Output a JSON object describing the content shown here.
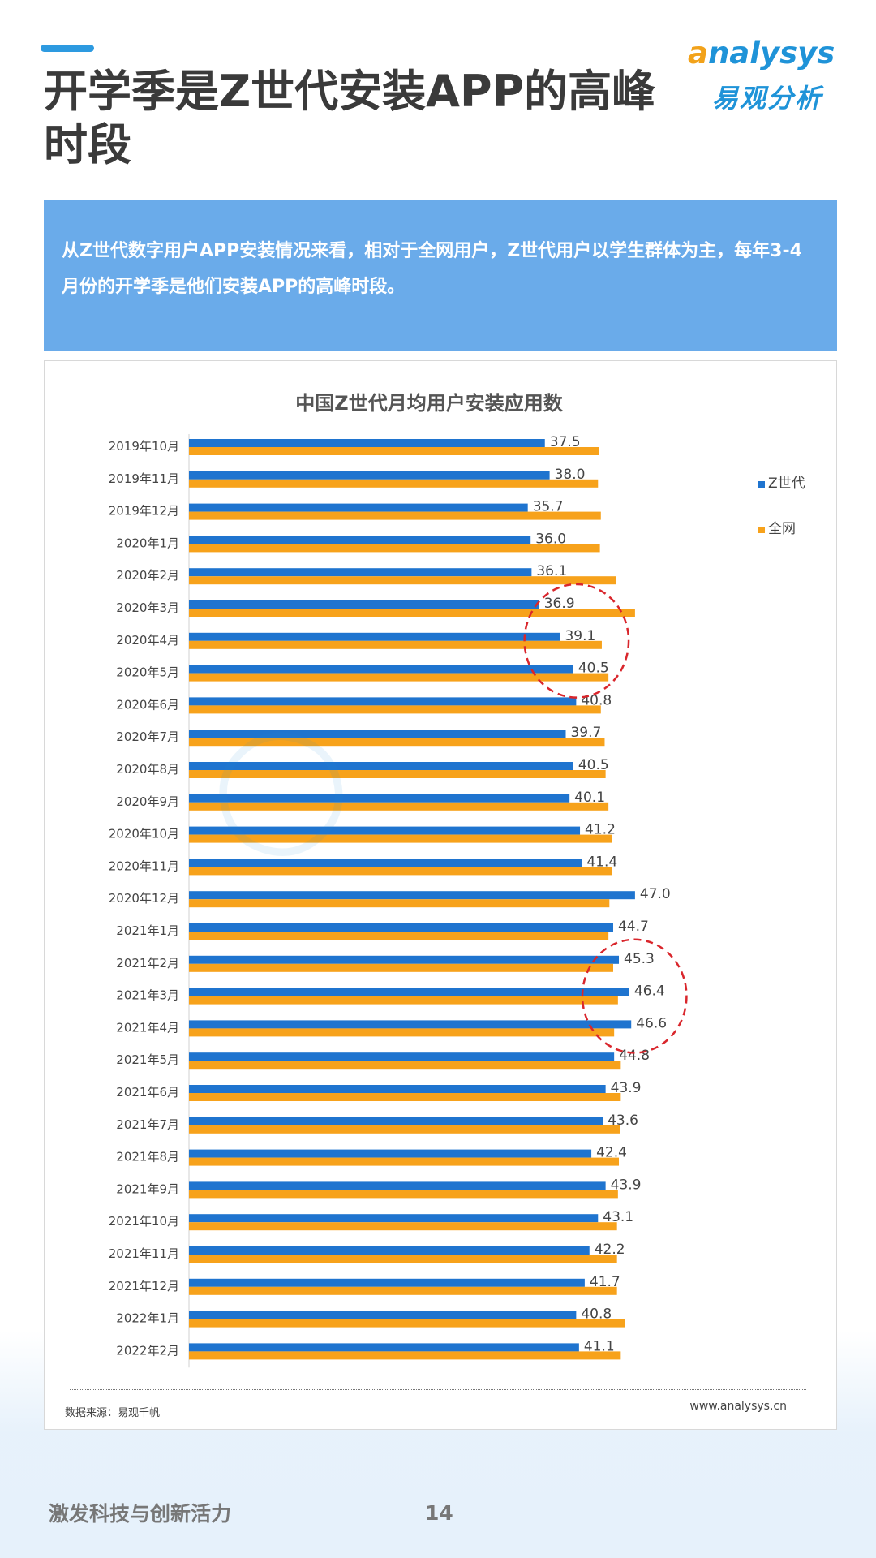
{
  "header": {
    "title": "开学季是Z世代安装APP的高峰时段",
    "logo_brand": "nalysys",
    "logo_brand_initial": "a",
    "logo_sub": "易观分析"
  },
  "intro": {
    "text": "从Z世代数字用户APP安装情况来看，相对于全网用户，Z世代用户以学生群体为主，每年3-4月份的开学季是他们安装APP的高峰时段。"
  },
  "chart_data": {
    "type": "bar",
    "orientation": "horizontal",
    "title": "中国Z世代月均用户安装应用数",
    "categories": [
      "2019年10月",
      "2019年11月",
      "2019年12月",
      "2020年1月",
      "2020年2月",
      "2020年3月",
      "2020年4月",
      "2020年5月",
      "2020年6月",
      "2020年7月",
      "2020年8月",
      "2020年9月",
      "2020年10月",
      "2020年11月",
      "2020年12月",
      "2021年1月",
      "2021年2月",
      "2021年3月",
      "2021年4月",
      "2021年5月",
      "2021年6月",
      "2021年7月",
      "2021年8月",
      "2021年9月",
      "2021年10月",
      "2021年11月",
      "2021年12月",
      "2022年1月",
      "2022年2月"
    ],
    "series": [
      {
        "name": "Z世代",
        "color": "#1f74cf",
        "values": [
          37.5,
          38.0,
          35.7,
          36.0,
          36.1,
          36.9,
          39.1,
          40.5,
          40.8,
          39.7,
          40.5,
          40.1,
          41.2,
          41.4,
          47.0,
          44.7,
          45.3,
          46.4,
          46.6,
          44.8,
          43.9,
          43.6,
          42.4,
          43.9,
          43.1,
          42.2,
          41.7,
          40.8,
          41.1
        ],
        "data_labels": true
      },
      {
        "name": "全网",
        "color": "#f7a21b",
        "values": [
          43.2,
          43.1,
          43.4,
          43.3,
          45.0,
          47.0,
          43.5,
          44.2,
          43.4,
          43.8,
          43.9,
          44.2,
          44.6,
          44.6,
          44.3,
          44.2,
          44.7,
          45.2,
          44.8,
          45.5,
          45.5,
          45.4,
          45.3,
          45.2,
          45.1,
          45.1,
          45.1,
          45.9,
          45.5
        ],
        "data_labels": false
      }
    ],
    "xlim": [
      0,
      55
    ],
    "grid": false,
    "legend": "right",
    "highlights": [
      {
        "from": "2020年3月",
        "to": "2020年5月"
      },
      {
        "from": "2021年2月",
        "to": "2021年4月"
      }
    ]
  },
  "footer": {
    "source": "数据来源：易观千帆",
    "website": "www.analysys.cn",
    "slogan": "激发科技与创新活力",
    "page_number": "14"
  }
}
